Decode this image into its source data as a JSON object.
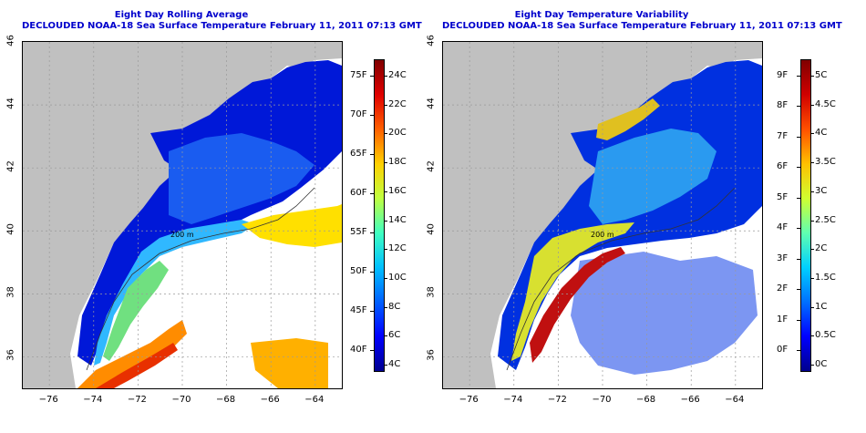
{
  "colors": {
    "land": "#c0c0c0",
    "no_data": "#ffffff",
    "title": "#0000cc",
    "grid": "#9a9a9a",
    "contour": "#333333"
  },
  "left_panel": {
    "title_line1": "Eight Day Rolling Average",
    "title_line2": "DECLOUDED NOAA-18 Sea Surface Temperature February 11, 2011 07:13 GMT",
    "x_ticks": [
      "-76",
      "-74",
      "-72",
      "-70",
      "-68",
      "-66",
      "-64"
    ],
    "y_ticks": [
      "36",
      "38",
      "40",
      "42",
      "44",
      "46"
    ],
    "contour_labels": [
      "200 m",
      "200 m",
      "200 m",
      "200 m"
    ],
    "colorbar": {
      "fahrenheit_labels": [
        "75F",
        "70F",
        "65F",
        "60F",
        "55F",
        "50F",
        "45F",
        "40F"
      ],
      "celsius_labels": [
        "24C",
        "22C",
        "20C",
        "18C",
        "16C",
        "14C",
        "12C",
        "10C",
        "8C",
        "6C",
        "4C"
      ],
      "gradient": [
        "#000090",
        "#0000ff",
        "#0060ff",
        "#00c0ff",
        "#40ffc0",
        "#c0ff40",
        "#ffd000",
        "#ff6000",
        "#e00000",
        "#800000"
      ]
    }
  },
  "right_panel": {
    "title_line1": "Eight Day Temperature Variability",
    "title_line2": "DECLOUDED NOAA-18 Sea Surface Temperature February 11, 2011 07:13 GMT",
    "x_ticks": [
      "-76",
      "-74",
      "-72",
      "-70",
      "-68",
      "-66",
      "-64"
    ],
    "y_ticks": [
      "36",
      "38",
      "40",
      "42",
      "44",
      "46"
    ],
    "contour_labels": [
      "200 m",
      "200 m"
    ],
    "colorbar": {
      "fahrenheit_labels": [
        "9F",
        "8F",
        "7F",
        "6F",
        "5F",
        "4F",
        "3F",
        "2F",
        "1F",
        "0F"
      ],
      "celsius_labels": [
        "5C",
        "4.5C",
        "4C",
        "3.5C",
        "3C",
        "2.5C",
        "2C",
        "1.5C",
        "1C",
        "0.5C",
        "0C"
      ],
      "gradient": [
        "#00008c",
        "#0000ff",
        "#0070ff",
        "#00d0ff",
        "#60ffb0",
        "#d0ff30",
        "#ffc000",
        "#ff5000",
        "#d00000",
        "#800000"
      ]
    }
  }
}
